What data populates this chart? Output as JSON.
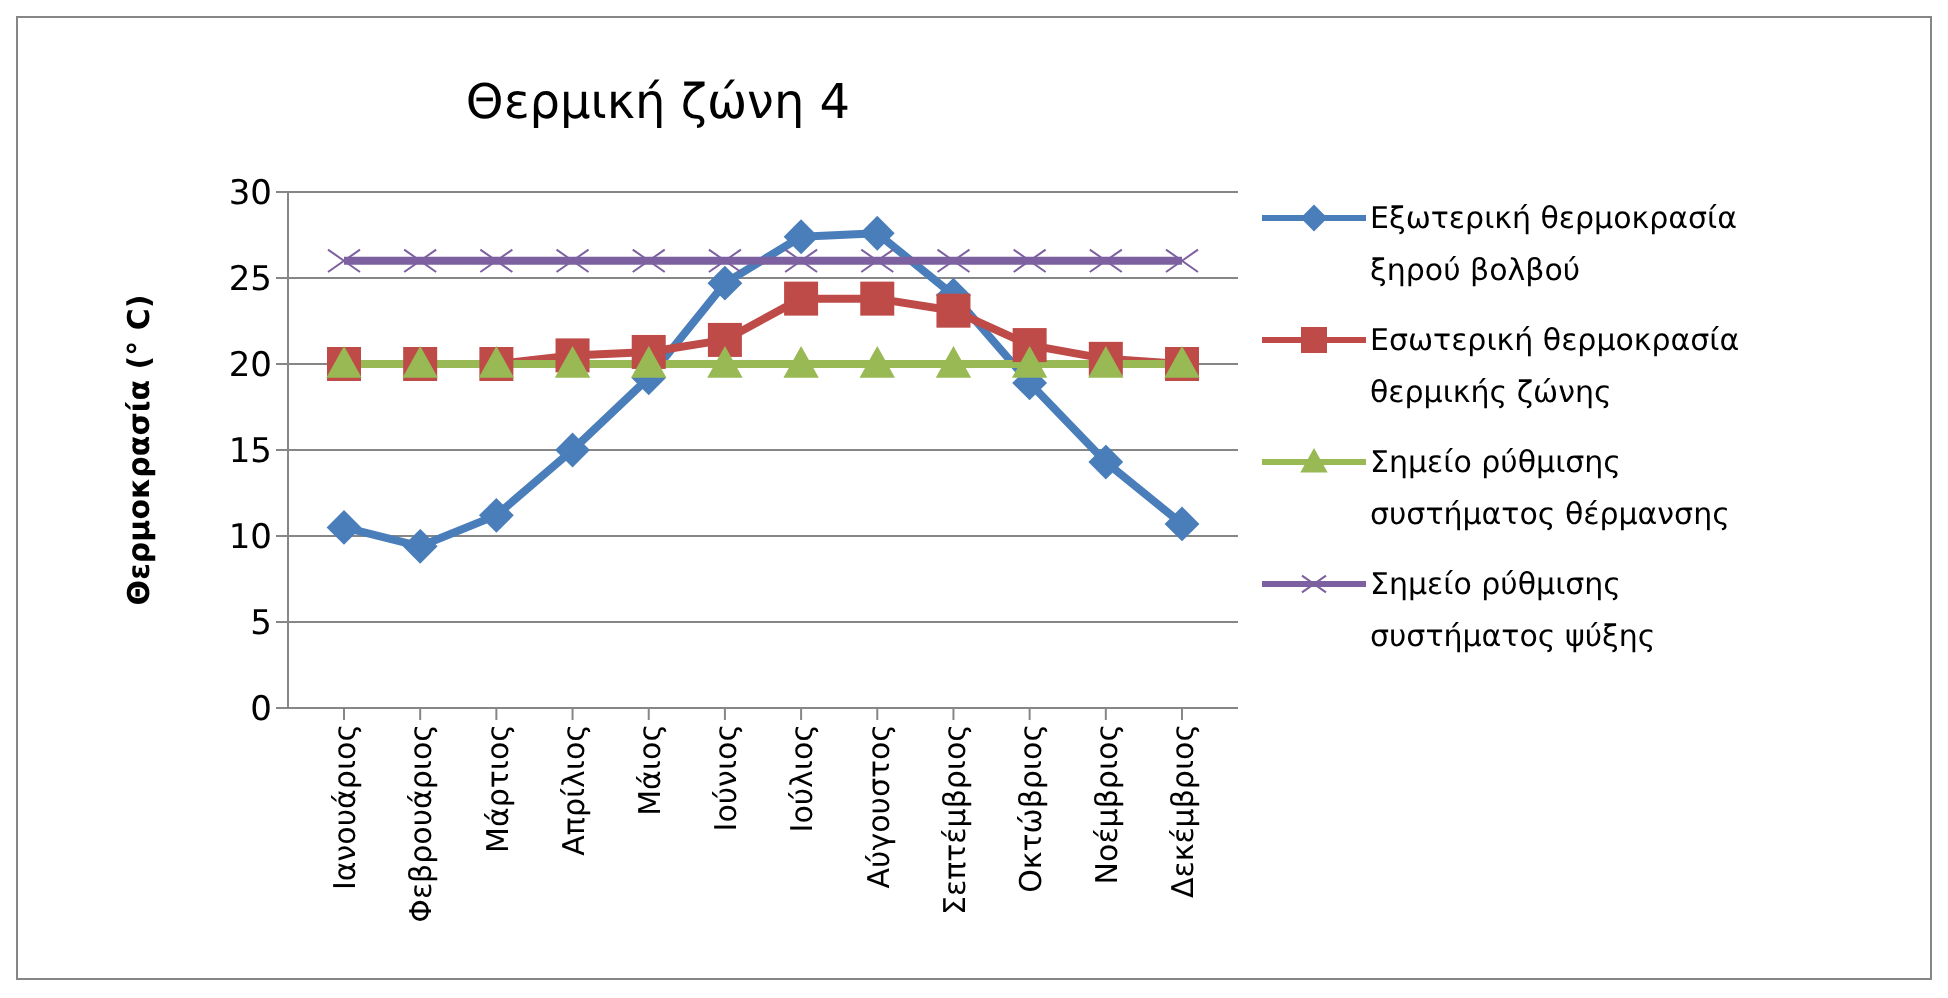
{
  "chart_data": {
    "type": "line",
    "title": "Θερμική ζώνη 4",
    "ylabel": "Θερμοκρασία (° C)",
    "categories": [
      "Ιανουάριος",
      "Φεβρουάριος",
      "Μάρτιος",
      "Απρίλιος",
      "Μάιος",
      "Ιούνιος",
      "Ιούλιος",
      "Αύγουστος",
      "Σεπτέμβριος",
      "Οκτώβριος",
      "Νοέμβριος",
      "Δεκέμβριος"
    ],
    "series": [
      {
        "name": "Εξωτερική θερμοκρασία ξηρού βολβού",
        "color": "#4a7ebb",
        "marker": "diamond",
        "values": [
          10.5,
          9.4,
          11.2,
          15.0,
          19.2,
          24.7,
          27.4,
          27.6,
          24.0,
          18.9,
          14.3,
          10.7
        ]
      },
      {
        "name": "Εσωτερική θερμοκρασία θερμικής ζώνης",
        "color": "#be4b48",
        "marker": "square",
        "values": [
          20.0,
          20.0,
          20.0,
          20.5,
          20.7,
          21.4,
          23.8,
          23.8,
          23.1,
          21.1,
          20.3,
          20.0
        ]
      },
      {
        "name": "Σημείο ρύθμισης συστήματος θέρμανσης",
        "color": "#98b954",
        "marker": "triangle",
        "values": [
          20,
          20,
          20,
          20,
          20,
          20,
          20,
          20,
          20,
          20,
          20,
          20
        ]
      },
      {
        "name": "Σημείο ρύθμισης συστήματος ψύξης",
        "color": "#7d60a0",
        "marker": "cross",
        "values": [
          26,
          26,
          26,
          26,
          26,
          26,
          26,
          26,
          26,
          26,
          26,
          26
        ]
      }
    ],
    "ylim": [
      0,
      30
    ],
    "yticks": [
      0,
      5,
      10,
      15,
      20,
      25,
      30
    ],
    "grid": "y",
    "legend": "right",
    "line_style": "solid"
  }
}
